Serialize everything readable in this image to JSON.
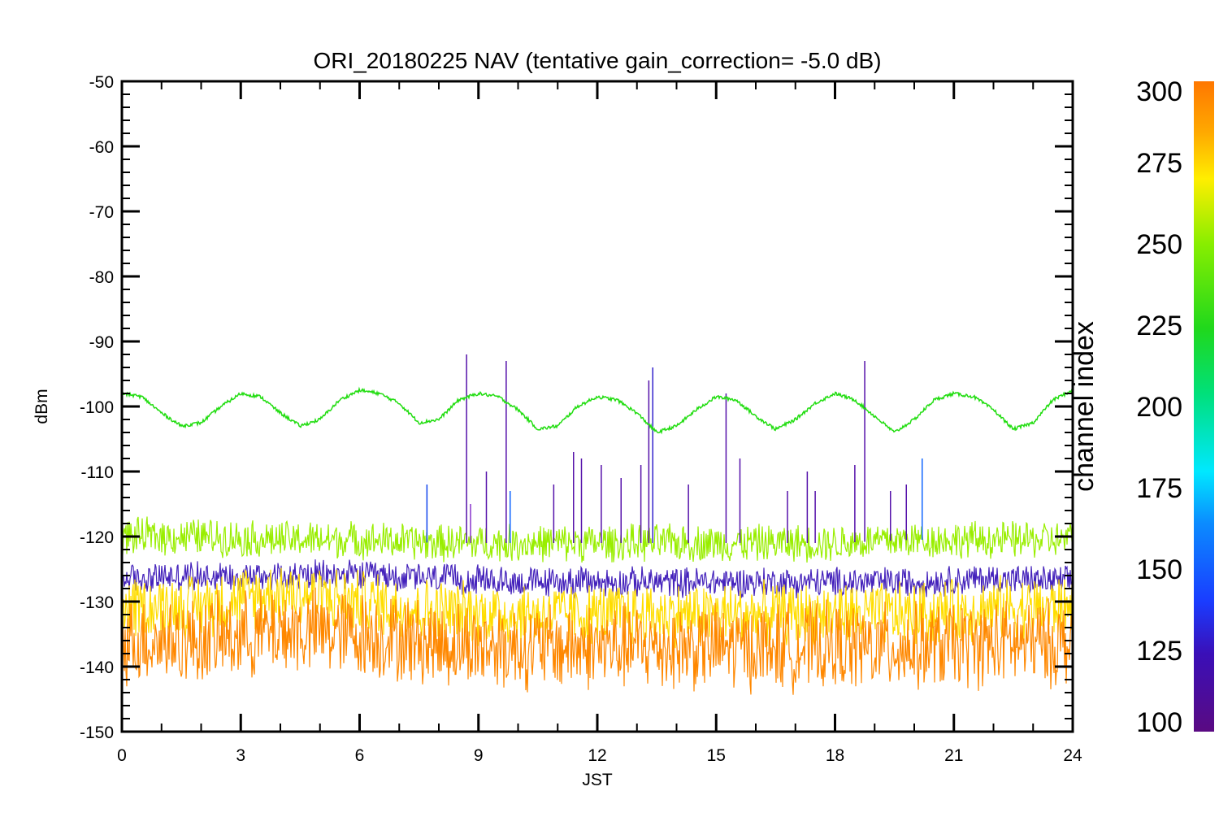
{
  "chart_data": {
    "type": "line",
    "title": "ORI_20180225 NAV (tentative gain_correction= -5.0 dB)",
    "xlabel": "JST",
    "ylabel": "dBm",
    "xlim": [
      0,
      24
    ],
    "ylim": [
      -150,
      -50
    ],
    "x_ticks": [
      "0",
      "3",
      "6",
      "9",
      "12",
      "15",
      "18",
      "21",
      "24"
    ],
    "y_ticks": [
      "-50",
      "-60",
      "-70",
      "-80",
      "-90",
      "-100",
      "-110",
      "-120",
      "-130",
      "-140",
      "-150"
    ],
    "grid": false,
    "colorbar": {
      "label": "channel index",
      "range": [
        100,
        300
      ],
      "ticks": [
        "100",
        "125",
        "150",
        "175",
        "200",
        "225",
        "250",
        "275",
        "300"
      ]
    },
    "series": [
      {
        "channel_index": 230,
        "color": "#22dd11",
        "x": [
          0,
          0.5,
          1,
          1.5,
          2,
          2.5,
          3,
          3.5,
          4,
          4.5,
          5,
          5.5,
          6,
          6.5,
          7,
          7.5,
          8,
          8.5,
          9,
          9.5,
          10,
          10.5,
          11,
          11.5,
          12,
          12.5,
          13,
          13.5,
          14,
          14.5,
          15,
          15.5,
          16,
          16.5,
          17,
          17.5,
          18,
          18.5,
          19,
          19.5,
          20,
          20.5,
          21,
          21.5,
          22,
          22.5,
          23,
          23.5,
          24
        ],
        "y": [
          -98,
          -98.5,
          -101,
          -103,
          -102.5,
          -100,
          -98,
          -98.5,
          -101,
          -103,
          -102,
          -99,
          -97.5,
          -98,
          -99.5,
          -102.5,
          -102,
          -99,
          -98,
          -98.5,
          -100.5,
          -103.5,
          -103,
          -100,
          -98.5,
          -99,
          -101,
          -104,
          -103,
          -100.5,
          -98.5,
          -99,
          -101.5,
          -103.5,
          -102,
          -99.5,
          -98,
          -99,
          -101.5,
          -104,
          -102,
          -99,
          -98,
          -98.5,
          -100.5,
          -103.5,
          -102.5,
          -99,
          -97.5
        ]
      },
      {
        "channel_index": 260,
        "color": "#99ee00",
        "x": [
          0,
          2,
          4,
          6,
          8,
          10,
          12,
          14,
          16,
          18,
          20,
          22,
          24
        ],
        "y": [
          -120,
          -120,
          -120.5,
          -120.5,
          -121,
          -121,
          -121,
          -121,
          -121,
          -121,
          -120.5,
          -120.5,
          -120.5
        ]
      },
      {
        "channel_index": 120,
        "color": "#4422bb",
        "x": [
          0,
          2,
          4,
          6,
          8,
          10,
          12,
          14,
          16,
          18,
          20,
          22,
          24
        ],
        "y": [
          -126.5,
          -126,
          -126,
          -126,
          -126.5,
          -127,
          -127,
          -127,
          -127,
          -127,
          -127,
          -126.5,
          -127
        ]
      },
      {
        "channel_index": 285,
        "color": "#ffdd00",
        "x": [
          0,
          2,
          4,
          6,
          8,
          10,
          12,
          14,
          16,
          18,
          20,
          22,
          24
        ],
        "y": [
          -131,
          -130.5,
          -128.5,
          -130,
          -131.5,
          -132,
          -132,
          -132,
          -132,
          -132,
          -132,
          -131,
          -131
        ]
      },
      {
        "channel_index": 300,
        "color": "#ff8800",
        "x": [
          0,
          2,
          4,
          6,
          8,
          10,
          12,
          14,
          16,
          18,
          20,
          22,
          24
        ],
        "y": [
          -136,
          -136,
          -134.5,
          -135,
          -136.5,
          -137,
          -137,
          -137,
          -137,
          -137,
          -137,
          -136.5,
          -136.5
        ]
      }
    ],
    "spikes": [
      {
        "x": 7.7,
        "y": -112,
        "color": "#1144ee"
      },
      {
        "x": 8.7,
        "y": -92,
        "color": "#5511aa"
      },
      {
        "x": 8.8,
        "y": -115,
        "color": "#8833cc"
      },
      {
        "x": 9.2,
        "y": -110,
        "color": "#5511aa"
      },
      {
        "x": 9.7,
        "y": -93,
        "color": "#5511aa"
      },
      {
        "x": 9.8,
        "y": -113,
        "color": "#1166ff"
      },
      {
        "x": 10.9,
        "y": -112,
        "color": "#5511aa"
      },
      {
        "x": 11.4,
        "y": -107,
        "color": "#5511aa"
      },
      {
        "x": 11.6,
        "y": -108,
        "color": "#5511aa"
      },
      {
        "x": 12.1,
        "y": -109,
        "color": "#5511aa"
      },
      {
        "x": 12.6,
        "y": -111,
        "color": "#5511aa"
      },
      {
        "x": 13.1,
        "y": -109,
        "color": "#5511aa"
      },
      {
        "x": 13.3,
        "y": -96,
        "color": "#5511aa"
      },
      {
        "x": 13.4,
        "y": -94,
        "color": "#3322cc"
      },
      {
        "x": 14.3,
        "y": -112,
        "color": "#5511aa"
      },
      {
        "x": 15.25,
        "y": -98,
        "color": "#5511aa"
      },
      {
        "x": 15.6,
        "y": -108,
        "color": "#5511aa"
      },
      {
        "x": 16.8,
        "y": -113,
        "color": "#5511aa"
      },
      {
        "x": 17.3,
        "y": -110,
        "color": "#5511aa"
      },
      {
        "x": 17.5,
        "y": -113,
        "color": "#5511aa"
      },
      {
        "x": 18.5,
        "y": -109,
        "color": "#5511aa"
      },
      {
        "x": 18.75,
        "y": -93,
        "color": "#5511aa"
      },
      {
        "x": 19.4,
        "y": -113,
        "color": "#5511aa"
      },
      {
        "x": 19.8,
        "y": -112,
        "color": "#5511aa"
      },
      {
        "x": 20.2,
        "y": -108,
        "color": "#1166ff"
      }
    ]
  }
}
